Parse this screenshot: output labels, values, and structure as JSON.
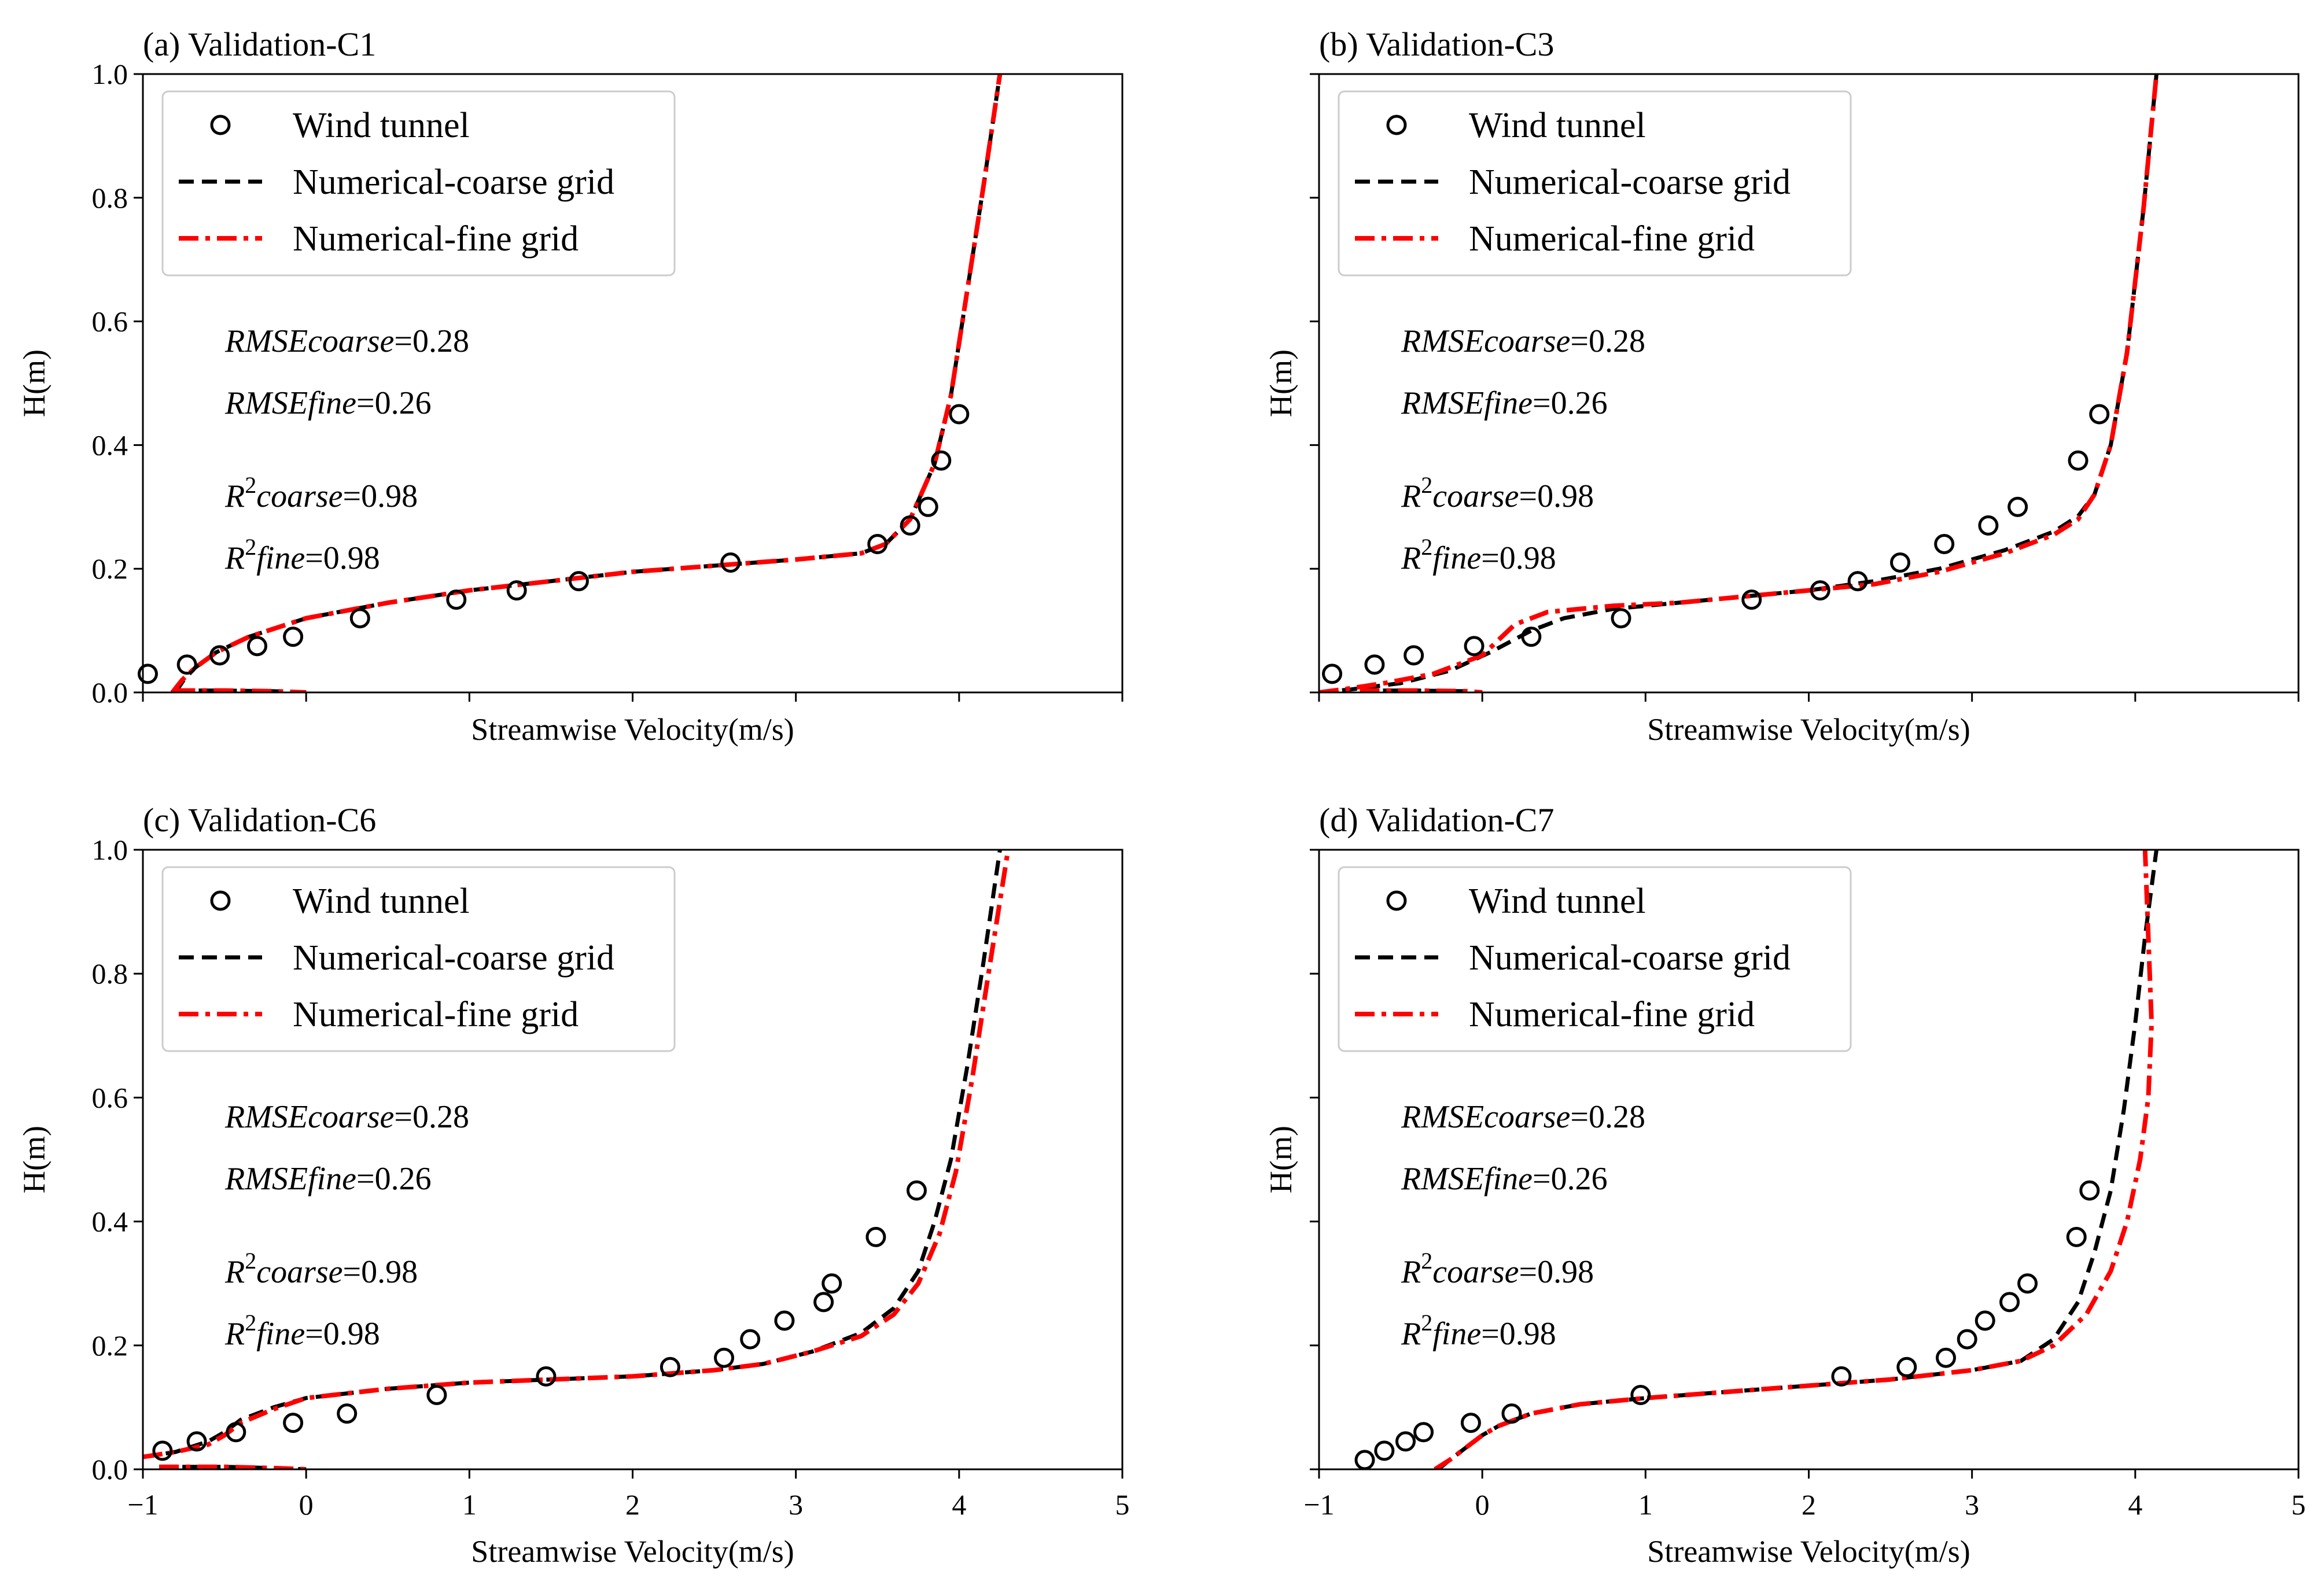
{
  "figure": {
    "shared_xlabel": "Streamwise Velocity(m/s)",
    "shared_ylabel": "H(m)",
    "legend": [
      {
        "key": "wind",
        "label": "Wind tunnel",
        "marker": "circle",
        "color": "#000000"
      },
      {
        "key": "coarse",
        "label": "Numerical-coarse grid",
        "style": "dashed",
        "color": "#000000"
      },
      {
        "key": "fine",
        "label": "Numerical-fine grid",
        "style": "dashdot",
        "color": "#ff0000"
      }
    ],
    "annotation_labels": {
      "rmse_coarse_name": "RMSEcoarse",
      "rmse_fine_name": "RMSEfine",
      "r2_base": "R",
      "r2_sup": "2",
      "coarse_suffix": "coarse",
      "fine_suffix": "fine"
    }
  },
  "chart_data": [
    {
      "type": "line",
      "title": "(a) Validation-C1",
      "xlabel": "Streamwise Velocity(m/s)",
      "ylabel": "H(m)",
      "xlim": [
        -1,
        5
      ],
      "ylim": [
        0,
        1.0
      ],
      "xticks": [
        -1,
        0,
        1,
        2,
        3,
        4,
        5
      ],
      "yticks": [
        0.0,
        0.2,
        0.4,
        0.6,
        0.8,
        1.0
      ],
      "show_xticklabels": false,
      "legend_position": "upper-left",
      "annotations": {
        "rmse_coarse": "0.28",
        "rmse_fine": "0.26",
        "r2_coarse": "0.98",
        "r2_fine": "0.98"
      },
      "series": [
        {
          "name": "Wind tunnel",
          "kind": "markers",
          "x": [
            -0.97,
            -0.73,
            -0.53,
            -0.3,
            -0.08,
            0.33,
            0.92,
            1.29,
            1.67,
            2.6,
            3.5,
            3.7,
            3.81,
            3.89,
            4.0
          ],
          "y": [
            0.03,
            0.045,
            0.06,
            0.075,
            0.09,
            0.12,
            0.15,
            0.165,
            0.18,
            0.21,
            0.24,
            0.27,
            0.3,
            0.375,
            0.45
          ]
        },
        {
          "name": "Numerical-coarse grid",
          "kind": "dashed",
          "x": [
            -0.8,
            -0.75,
            -0.68,
            -0.55,
            -0.35,
            0.0,
            0.5,
            1.0,
            1.5,
            2.0,
            2.5,
            3.0,
            3.4,
            3.55,
            3.7,
            3.85,
            3.95,
            4.05,
            4.15,
            4.25
          ],
          "y": [
            0.0,
            0.02,
            0.04,
            0.065,
            0.09,
            0.12,
            0.145,
            0.165,
            0.18,
            0.195,
            0.205,
            0.215,
            0.225,
            0.24,
            0.28,
            0.37,
            0.48,
            0.65,
            0.82,
            1.0
          ]
        },
        {
          "name": "Numerical-fine grid",
          "kind": "dashdot",
          "x": [
            -0.82,
            -0.76,
            -0.68,
            -0.55,
            -0.35,
            0.0,
            0.5,
            1.0,
            1.5,
            2.0,
            2.5,
            3.0,
            3.4,
            3.55,
            3.7,
            3.85,
            3.95,
            4.05,
            4.15,
            4.25
          ],
          "y": [
            0.0,
            0.02,
            0.04,
            0.065,
            0.09,
            0.12,
            0.145,
            0.165,
            0.18,
            0.195,
            0.205,
            0.215,
            0.225,
            0.24,
            0.28,
            0.37,
            0.48,
            0.65,
            0.82,
            1.0
          ]
        },
        {
          "name": "near-wall coarse",
          "kind": "dashed",
          "x": [
            -0.8,
            -0.5,
            -0.2,
            0.0
          ],
          "y": [
            0.003,
            0.003,
            0.002,
            0.0
          ]
        },
        {
          "name": "near-wall fine",
          "kind": "dashdot",
          "x": [
            -0.8,
            -0.5,
            -0.2,
            0.0
          ],
          "y": [
            0.003,
            0.003,
            0.002,
            0.0
          ]
        }
      ]
    },
    {
      "type": "line",
      "title": "(b) Validation-C3",
      "xlabel": "Streamwise Velocity(m/s)",
      "ylabel": "H(m)",
      "xlim": [
        -1,
        5
      ],
      "ylim": [
        0,
        1.0
      ],
      "xticks": [
        -1,
        0,
        1,
        2,
        3,
        4,
        5
      ],
      "yticks": [
        0.0,
        0.2,
        0.4,
        0.6,
        0.8,
        1.0
      ],
      "show_xticklabels": false,
      "legend_position": "upper-left",
      "annotations": {
        "rmse_coarse": "0.28",
        "rmse_fine": "0.26",
        "r2_coarse": "0.98",
        "r2_fine": "0.98"
      },
      "series": [
        {
          "name": "Wind tunnel",
          "kind": "markers",
          "x": [
            -0.92,
            -0.66,
            -0.42,
            -0.05,
            0.3,
            0.85,
            1.65,
            2.07,
            2.3,
            2.56,
            2.83,
            3.1,
            3.28,
            3.65,
            3.78
          ],
          "y": [
            0.03,
            0.045,
            0.06,
            0.075,
            0.09,
            0.12,
            0.15,
            0.165,
            0.18,
            0.21,
            0.24,
            0.27,
            0.3,
            0.375,
            0.45
          ]
        },
        {
          "name": "Numerical-coarse grid",
          "kind": "dashed",
          "x": [
            -1.0,
            -0.8,
            -0.5,
            -0.2,
            0.05,
            0.3,
            0.5,
            0.8,
            1.2,
            1.6,
            2.0,
            2.4,
            2.8,
            3.2,
            3.5,
            3.65,
            3.75,
            3.85,
            3.95,
            4.05,
            4.13
          ],
          "y": [
            0.0,
            0.005,
            0.015,
            0.035,
            0.065,
            0.1,
            0.12,
            0.135,
            0.145,
            0.155,
            0.165,
            0.18,
            0.2,
            0.23,
            0.26,
            0.285,
            0.32,
            0.4,
            0.55,
            0.78,
            1.0
          ]
        },
        {
          "name": "Numerical-fine grid",
          "kind": "dashdot",
          "x": [
            -1.0,
            -0.85,
            -0.6,
            -0.3,
            0.0,
            0.1,
            0.2,
            0.4,
            0.8,
            1.2,
            1.6,
            2.0,
            2.4,
            2.8,
            3.2,
            3.5,
            3.65,
            3.75,
            3.85,
            3.95,
            4.05,
            4.13
          ],
          "y": [
            0.0,
            0.005,
            0.015,
            0.03,
            0.06,
            0.085,
            0.11,
            0.13,
            0.14,
            0.145,
            0.155,
            0.165,
            0.175,
            0.195,
            0.225,
            0.255,
            0.28,
            0.32,
            0.4,
            0.55,
            0.78,
            1.0
          ]
        },
        {
          "name": "near-wall coarse",
          "kind": "dashed",
          "x": [
            -0.75,
            -0.4,
            -0.1,
            0.0
          ],
          "y": [
            0.003,
            0.003,
            0.002,
            0.0
          ]
        },
        {
          "name": "near-wall fine",
          "kind": "dashdot",
          "x": [
            -0.75,
            -0.4,
            -0.1,
            0.0
          ],
          "y": [
            0.003,
            0.003,
            0.002,
            0.0
          ]
        }
      ]
    },
    {
      "type": "line",
      "title": "(c) Validation-C6",
      "xlabel": "Streamwise Velocity(m/s)",
      "ylabel": "H(m)",
      "xlim": [
        -1,
        5
      ],
      "ylim": [
        0,
        1.0
      ],
      "xticks": [
        -1,
        0,
        1,
        2,
        3,
        4,
        5
      ],
      "yticks": [
        0.0,
        0.2,
        0.4,
        0.6,
        0.8,
        1.0
      ],
      "show_xticklabels": true,
      "legend_position": "upper-left",
      "annotations": {
        "rmse_coarse": "0.28",
        "rmse_fine": "0.26",
        "r2_coarse": "0.98",
        "r2_fine": "0.98"
      },
      "series": [
        {
          "name": "Wind tunnel",
          "kind": "markers",
          "x": [
            -0.88,
            -0.67,
            -0.43,
            -0.08,
            0.25,
            0.8,
            1.47,
            2.23,
            2.56,
            2.72,
            2.93,
            3.17,
            3.22,
            3.49,
            3.74
          ],
          "y": [
            0.03,
            0.045,
            0.06,
            0.075,
            0.09,
            0.12,
            0.15,
            0.165,
            0.18,
            0.21,
            0.24,
            0.27,
            0.3,
            0.375,
            0.45
          ]
        },
        {
          "name": "Numerical-coarse grid",
          "kind": "dashed",
          "x": [
            -1.0,
            -0.8,
            -0.6,
            -0.5,
            -0.4,
            -0.2,
            0.0,
            0.5,
            1.0,
            1.5,
            2.0,
            2.5,
            2.8,
            3.1,
            3.4,
            3.6,
            3.75,
            3.85,
            3.95,
            4.05,
            4.15,
            4.25
          ],
          "y": [
            0.02,
            0.028,
            0.045,
            0.06,
            0.08,
            0.1,
            0.115,
            0.13,
            0.14,
            0.145,
            0.15,
            0.16,
            0.17,
            0.19,
            0.22,
            0.26,
            0.32,
            0.4,
            0.5,
            0.65,
            0.82,
            1.0
          ]
        },
        {
          "name": "Numerical-fine grid",
          "kind": "dashdot",
          "x": [
            -1.0,
            -0.8,
            -0.6,
            -0.5,
            -0.4,
            -0.2,
            0.0,
            0.5,
            1.0,
            1.5,
            2.0,
            2.5,
            2.8,
            3.1,
            3.4,
            3.6,
            3.75,
            3.88,
            3.98,
            4.08,
            4.18,
            4.3
          ],
          "y": [
            0.02,
            0.028,
            0.04,
            0.055,
            0.075,
            0.097,
            0.115,
            0.13,
            0.14,
            0.145,
            0.15,
            0.16,
            0.17,
            0.19,
            0.215,
            0.25,
            0.3,
            0.38,
            0.48,
            0.63,
            0.8,
            1.0
          ]
        },
        {
          "name": "near-wall coarse",
          "kind": "dashed",
          "x": [
            -0.9,
            -0.5,
            -0.2,
            0.0
          ],
          "y": [
            0.004,
            0.004,
            0.002,
            0.0
          ]
        },
        {
          "name": "near-wall fine",
          "kind": "dashdot",
          "x": [
            -0.9,
            -0.5,
            -0.2,
            0.0
          ],
          "y": [
            0.004,
            0.004,
            0.002,
            0.0
          ]
        }
      ]
    },
    {
      "type": "line",
      "title": "(d) Validation-C7",
      "xlabel": "Streamwise Velocity(m/s)",
      "ylabel": "H(m)",
      "xlim": [
        -1,
        5
      ],
      "ylim": [
        0,
        1.0
      ],
      "xticks": [
        -1,
        0,
        1,
        2,
        3,
        4,
        5
      ],
      "yticks": [
        0.0,
        0.2,
        0.4,
        0.6,
        0.8,
        1.0
      ],
      "show_xticklabels": true,
      "legend_position": "upper-left",
      "annotations": {
        "rmse_coarse": "0.28",
        "rmse_fine": "0.26",
        "r2_coarse": "0.98",
        "r2_fine": "0.98"
      },
      "series": [
        {
          "name": "Wind tunnel",
          "kind": "markers",
          "x": [
            -0.72,
            -0.6,
            -0.47,
            -0.36,
            -0.07,
            0.18,
            0.97,
            2.2,
            2.6,
            2.84,
            2.97,
            3.08,
            3.23,
            3.34,
            3.64,
            3.72
          ],
          "y": [
            0.015,
            0.03,
            0.045,
            0.06,
            0.075,
            0.09,
            0.12,
            0.15,
            0.165,
            0.18,
            0.21,
            0.24,
            0.27,
            0.3,
            0.375,
            0.45
          ]
        },
        {
          "name": "Numerical-coarse grid",
          "kind": "dashed",
          "x": [
            -0.27,
            -0.2,
            -0.1,
            0.0,
            0.1,
            0.3,
            0.6,
            1.0,
            1.5,
            2.0,
            2.5,
            3.0,
            3.3,
            3.5,
            3.65,
            3.75,
            3.85,
            3.93,
            4.0,
            4.06,
            4.13
          ],
          "y": [
            0.0,
            0.015,
            0.035,
            0.055,
            0.07,
            0.09,
            0.105,
            0.115,
            0.125,
            0.135,
            0.145,
            0.16,
            0.175,
            0.21,
            0.27,
            0.35,
            0.45,
            0.58,
            0.72,
            0.86,
            1.0
          ]
        },
        {
          "name": "Numerical-fine grid",
          "kind": "dashdot",
          "x": [
            -0.29,
            -0.2,
            -0.1,
            0.0,
            0.1,
            0.3,
            0.6,
            1.0,
            1.5,
            2.0,
            2.5,
            3.0,
            3.3,
            3.5,
            3.7,
            3.85,
            3.95,
            4.03,
            4.08,
            4.1,
            4.08,
            4.06
          ],
          "y": [
            0.0,
            0.015,
            0.035,
            0.055,
            0.07,
            0.09,
            0.105,
            0.115,
            0.125,
            0.135,
            0.145,
            0.16,
            0.175,
            0.2,
            0.25,
            0.32,
            0.4,
            0.5,
            0.6,
            0.72,
            0.86,
            1.0
          ]
        }
      ]
    }
  ]
}
